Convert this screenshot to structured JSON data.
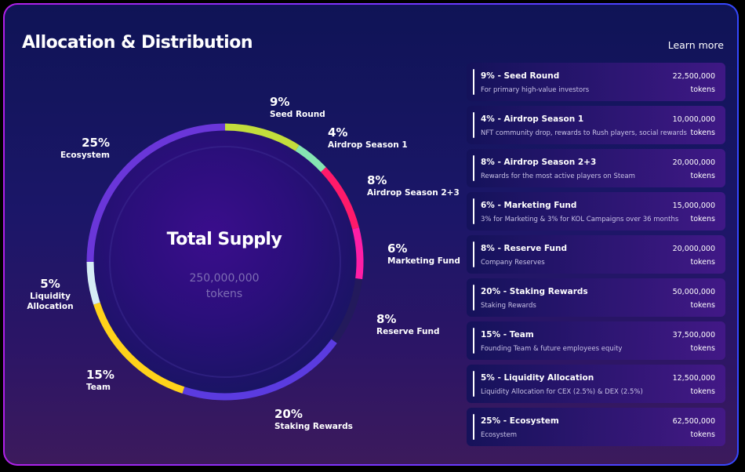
{
  "header": {
    "title": "Allocation & Distribution",
    "learn_more": "Learn more"
  },
  "center": {
    "title": "Total Supply",
    "amount": "250,000,000",
    "unit": "tokens"
  },
  "chart_data": {
    "type": "pie",
    "title": "Total Supply",
    "categories": [
      "Seed Round",
      "Airdrop Season 1",
      "Airdrop Season 2+3",
      "Marketing Fund",
      "Reserve Fund",
      "Staking Rewards",
      "Team",
      "Liquidity Allocation",
      "Ecosystem"
    ],
    "values": [
      9,
      4,
      8,
      6,
      8,
      20,
      15,
      5,
      25
    ],
    "colors": [
      "#c3dd3c",
      "#85e6b2",
      "#ff1a6a",
      "#ff1ea6",
      "#231a5c",
      "#5b3be0",
      "#ffd21a",
      "#d6ecf6",
      "#6a36d9"
    ],
    "labels": [
      {
        "pct": "9%",
        "name": "Seed Round"
      },
      {
        "pct": "4%",
        "name": "Airdrop Season 1"
      },
      {
        "pct": "8%",
        "name": "Airdrop Season 2+3"
      },
      {
        "pct": "6%",
        "name": "Marketing Fund"
      },
      {
        "pct": "8%",
        "name": "Reserve Fund"
      },
      {
        "pct": "20%",
        "name": "Staking Rewards"
      },
      {
        "pct": "15%",
        "name": "Team"
      },
      {
        "pct": "5%",
        "name_line1": "Liquidity",
        "name_line2": "Allocation"
      },
      {
        "pct": "25%",
        "name": "Ecosystem"
      }
    ]
  },
  "cards": [
    {
      "title": "9% - Seed Round",
      "desc": "For primary high-value investors",
      "amount": "22,500,000",
      "unit": "tokens"
    },
    {
      "title": "4% - Airdrop Season 1",
      "desc": "NFT community drop, rewards to Rush players, social rewards",
      "amount": "10,000,000",
      "unit": "tokens"
    },
    {
      "title": "8% - Airdrop Season 2+3",
      "desc": "Rewards for the most active players on Steam",
      "amount": "20,000,000",
      "unit": "tokens"
    },
    {
      "title": "6% - Marketing Fund",
      "desc": "3% for Marketing & 3% for KOL Campaigns over 36 months",
      "amount": "15,000,000",
      "unit": "tokens"
    },
    {
      "title": "8% - Reserve Fund",
      "desc": "Company Reserves",
      "amount": "20,000,000",
      "unit": "tokens"
    },
    {
      "title": "20% - Staking Rewards",
      "desc": "Staking Rewards",
      "amount": "50,000,000",
      "unit": "tokens"
    },
    {
      "title": "15% - Team",
      "desc": "Founding Team & future employees equity",
      "amount": "37,500,000",
      "unit": "tokens"
    },
    {
      "title": "5% - Liquidity Allocation",
      "desc": "Liquidity Allocation for CEX (2.5%) & DEX (2.5%)",
      "amount": "12,500,000",
      "unit": "tokens"
    },
    {
      "title": "25% - Ecosystem",
      "desc": "Ecosystem",
      "amount": "62,500,000",
      "unit": "tokens"
    }
  ]
}
